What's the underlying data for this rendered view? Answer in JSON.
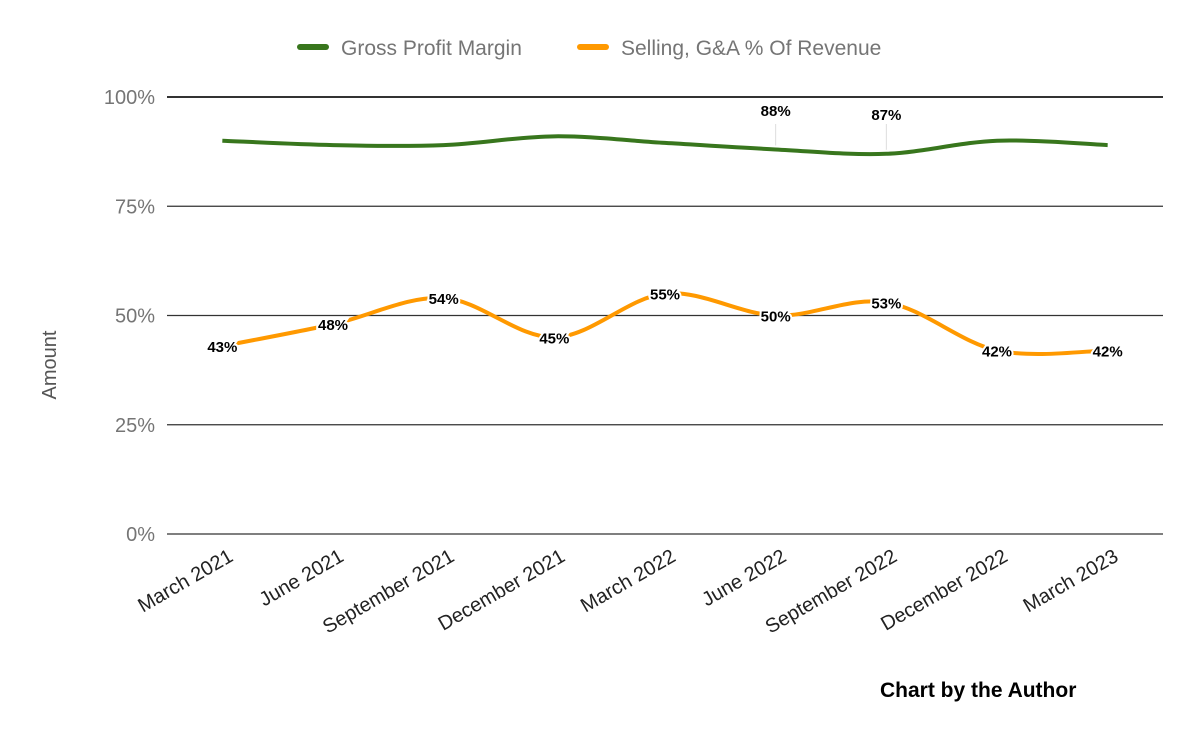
{
  "chart_data": {
    "type": "line",
    "title": "",
    "xlabel": "",
    "ylabel": "Amount",
    "ylim": [
      0,
      100
    ],
    "yticks": [
      "0%",
      "25%",
      "50%",
      "75%",
      "100%"
    ],
    "ytick_values": [
      0,
      25,
      50,
      75,
      100
    ],
    "grid": true,
    "smooth": true,
    "legend_position": "top",
    "categories": [
      "March 2021",
      "June 2021",
      "September 2021",
      "December 2021",
      "March 2022",
      "June 2022",
      "September 2022",
      "December 2022",
      "March 2023"
    ],
    "series": [
      {
        "name": "Gross Profit Margin",
        "color": "#38761d",
        "values": [
          90,
          89,
          89,
          91,
          89.5,
          88,
          87,
          90,
          89
        ],
        "labels": [
          null,
          null,
          null,
          null,
          null,
          "88%",
          "87%",
          null,
          null
        ]
      },
      {
        "name": "Selling, G&A % Of Revenue",
        "color": "#ff9900",
        "values": [
          43,
          48,
          54,
          45,
          55,
          50,
          53,
          42,
          42
        ],
        "labels": [
          "43%",
          "48%",
          "54%",
          "45%",
          "55%",
          "50%",
          "53%",
          "42%",
          "42%"
        ]
      }
    ]
  },
  "credit": "Chart by the Author"
}
